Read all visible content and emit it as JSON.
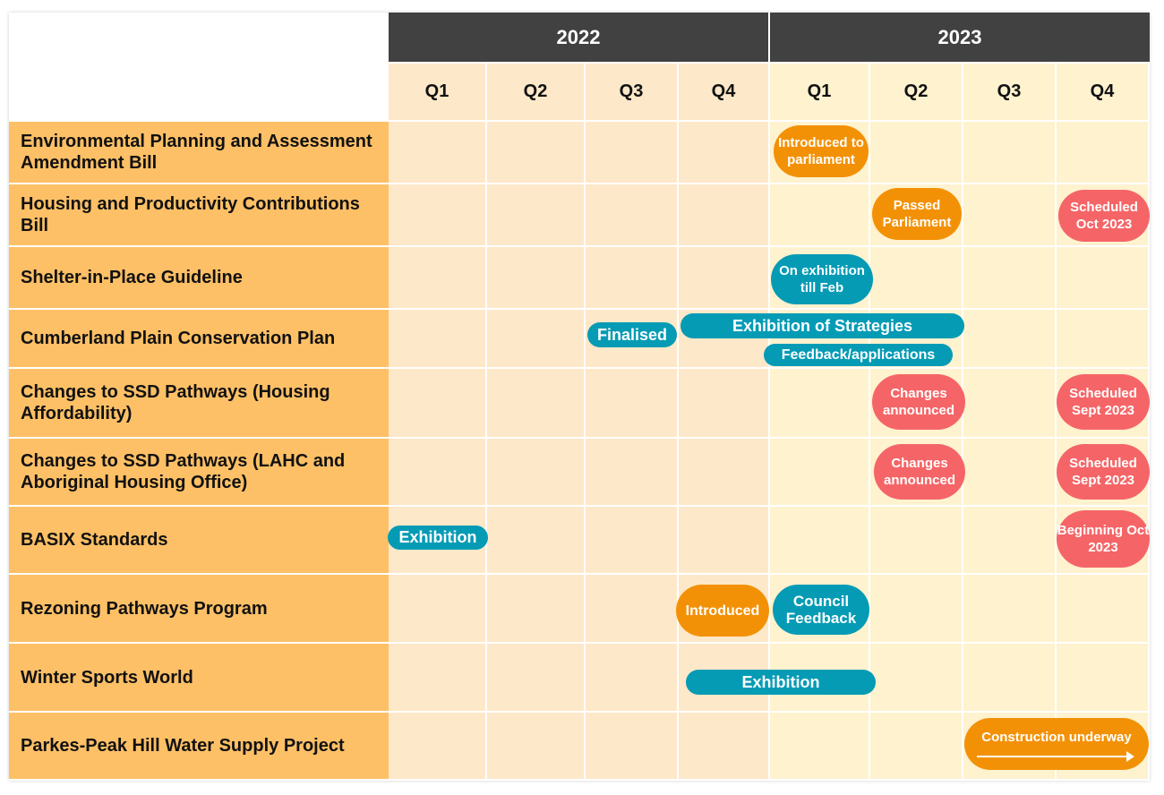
{
  "header": {
    "years": [
      "2022",
      "2023"
    ],
    "quarters": [
      "Q1",
      "Q2",
      "Q3",
      "Q4",
      "Q1",
      "Q2",
      "Q3",
      "Q4"
    ]
  },
  "rows": [
    {
      "label": "Environmental Planning and Assessment Amendment Bill"
    },
    {
      "label": "Housing and Productivity Contributions Bill"
    },
    {
      "label": "Shelter-in-Place Guideline"
    },
    {
      "label": "Cumberland Plain Conservation Plan"
    },
    {
      "label": "Changes to SSD Pathways (Housing Affordability)"
    },
    {
      "label": "Changes to SSD Pathways (LAHC and Aboriginal Housing Office)"
    },
    {
      "label": "BASIX Standards"
    },
    {
      "label": "Rezoning Pathways Program"
    },
    {
      "label": "Winter Sports World"
    },
    {
      "label": "Parkes-Peak Hill Water Supply Project"
    }
  ],
  "milestones": [
    {
      "row": 0,
      "text": "Introduced to parliament",
      "color": "orange"
    },
    {
      "row": 1,
      "text": "Passed Parliament",
      "color": "orange"
    },
    {
      "row": 1,
      "text": "Scheduled Oct 2023",
      "color": "red"
    },
    {
      "row": 2,
      "text": "On exhibition till Feb",
      "color": "teal"
    },
    {
      "row": 3,
      "text": "Finalised",
      "color": "teal"
    },
    {
      "row": 3,
      "text": "Exhibition of Strategies",
      "color": "teal"
    },
    {
      "row": 3,
      "text": "Feedback/applications",
      "color": "teal"
    },
    {
      "row": 4,
      "text": "Changes announced",
      "color": "red"
    },
    {
      "row": 4,
      "text": "Scheduled Sept 2023",
      "color": "red"
    },
    {
      "row": 5,
      "text": "Changes announced",
      "color": "red"
    },
    {
      "row": 5,
      "text": "Scheduled Sept 2023",
      "color": "red"
    },
    {
      "row": 6,
      "text": "Exhibition",
      "color": "teal"
    },
    {
      "row": 6,
      "text": "Beginning Oct 2023",
      "color": "red"
    },
    {
      "row": 7,
      "text": "Introduced",
      "color": "orange"
    },
    {
      "row": 7,
      "text": "Council Feedback",
      "color": "teal"
    },
    {
      "row": 8,
      "text": "Exhibition",
      "color": "teal"
    },
    {
      "row": 9,
      "text": "Construction underway",
      "color": "orange"
    }
  ],
  "colors": {
    "year_band": "#414141",
    "label_column": "#fec066",
    "cells_2022": "#fde8c9",
    "cells_2023": "#fef2cf",
    "orange": "#f39106",
    "teal": "#059bb5",
    "red": "#f56567"
  }
}
